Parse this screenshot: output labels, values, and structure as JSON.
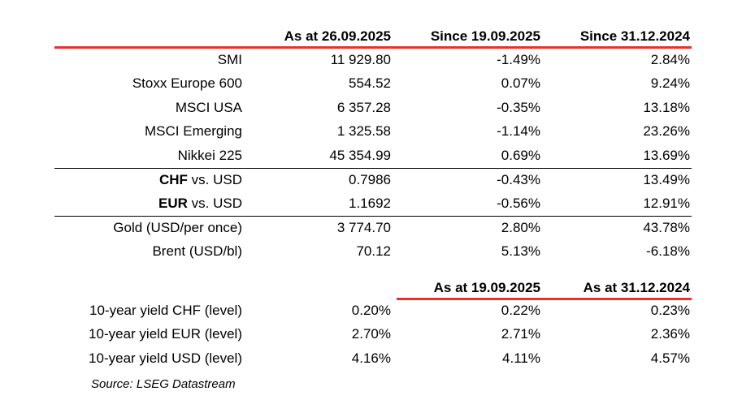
{
  "header1": {
    "col1": "As at 26.09.2025",
    "col2": "Since 19.09.2025",
    "col3": "Since 31.12.2024"
  },
  "rows": [
    {
      "label": "SMI",
      "v1": "11 929.80",
      "v2": "-1.49%",
      "v3": "2.84%"
    },
    {
      "label": "Stoxx Europe 600",
      "v1": "554.52",
      "v2": "0.07%",
      "v3": "9.24%"
    },
    {
      "label": "MSCI USA",
      "v1": "6 357.28",
      "v2": "-0.35%",
      "v3": "13.18%"
    },
    {
      "label": "MSCI Emerging",
      "v1": "1 325.58",
      "v2": "-1.14%",
      "v3": "23.26%"
    },
    {
      "label": "Nikkei 225",
      "v1": "45 354.99",
      "v2": "0.69%",
      "v3": "13.69%"
    }
  ],
  "fx_rows": [
    {
      "label_bold": "CHF",
      "label_rest": " vs. USD",
      "v1": "0.7986",
      "v2": "-0.43%",
      "v3": "13.49%"
    },
    {
      "label_bold": "EUR",
      "label_rest": " vs. USD",
      "v1": "1.1692",
      "v2": "-0.56%",
      "v3": "12.91%"
    }
  ],
  "commodity_rows": [
    {
      "label": "Gold (USD/per once)",
      "v1": "3 774.70",
      "v2": "2.80%",
      "v3": "43.78%"
    },
    {
      "label": "Brent (USD/bl)",
      "v1": "70.12",
      "v2": "5.13%",
      "v3": "-6.18%"
    }
  ],
  "header2": {
    "col2": "As at 19.09.2025",
    "col3": "As at 31.12.2024"
  },
  "yield_rows": [
    {
      "label": "10-year yield CHF (level)",
      "v1": "0.20%",
      "v2": "0.22%",
      "v3": "0.23%"
    },
    {
      "label": "10-year yield EUR (level)",
      "v1": "2.70%",
      "v2": "2.71%",
      "v3": "2.36%"
    },
    {
      "label": "10-year yield USD (level)",
      "v1": "4.16%",
      "v2": "4.11%",
      "v3": "4.57%"
    }
  ],
  "source": "Source: LSEG Datastream",
  "colors": {
    "accent_line": "#e8302f"
  }
}
